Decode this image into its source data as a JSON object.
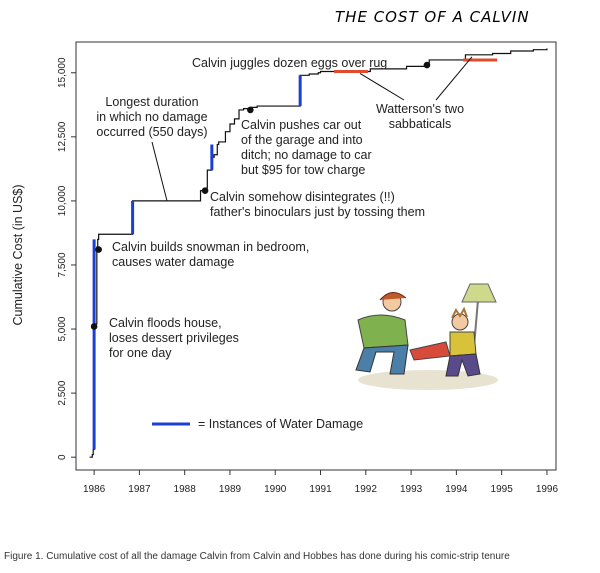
{
  "chart_data": {
    "type": "line",
    "title": "THE COST OF A CALVIN",
    "ylabel": "Cumulative Cost (in US$)",
    "xlabel": "",
    "xlim": [
      1985.6,
      1996.2
    ],
    "ylim": [
      -500,
      16200
    ],
    "x_ticks": [
      "1986",
      "1987",
      "1988",
      "1989",
      "1990",
      "1991",
      "1992",
      "1993",
      "1994",
      "1995",
      "1996"
    ],
    "y_ticks": [
      "0",
      "2,500",
      "5,000",
      "7,500",
      "10,000",
      "12,500",
      "15,000"
    ],
    "grid": false,
    "legend": {
      "label": "= Instances of Water Damage",
      "placement": "bottom-center",
      "color": "#1a3fd8"
    },
    "colors": {
      "line": "#111111",
      "water_damage": "#1a3fd8",
      "sabbatical": "#e24a2e",
      "dot": "#111111"
    },
    "series": [
      {
        "x": [
          1985.9,
          1985.96,
          1985.98,
          1986.0,
          1986.06,
          1986.08,
          1986.1,
          1986.2,
          1986.5,
          1986.85,
          1986.88,
          1987.4,
          1987.6,
          1988.1,
          1988.35,
          1988.45,
          1988.5,
          1988.6,
          1988.65,
          1988.72,
          1988.75,
          1988.9,
          1989.0,
          1989.1,
          1989.2,
          1989.3,
          1989.45,
          1989.6,
          1989.8,
          1990.3,
          1990.55,
          1990.62,
          1990.75,
          1990.95,
          1991.0,
          1991.25,
          1992.1,
          1992.9,
          1993.3,
          1993.4,
          1994.2,
          1994.8,
          1995.2,
          1995.7,
          1996.0
        ],
        "y": [
          0,
          100,
          300,
          5200,
          8200,
          8500,
          8700,
          8700,
          8700,
          10000,
          10000,
          10000,
          10000,
          10000,
          10400,
          10500,
          11200,
          11700,
          11800,
          12200,
          12300,
          12700,
          13000,
          13200,
          13550,
          13600,
          13650,
          13700,
          13700,
          13700,
          14900,
          14900,
          14950,
          15000,
          15050,
          15050,
          15150,
          15250,
          15300,
          15500,
          15700,
          15750,
          15850,
          15900,
          15950
        ]
      }
    ],
    "water_damage_segments": [
      [
        1986.0,
        1986.08
      ],
      [
        1986.85,
        1986.88
      ],
      [
        1988.6,
        1988.72
      ],
      [
        1990.55,
        1990.62
      ]
    ],
    "sabbaticals": [
      [
        1991.3,
        1992.05
      ],
      [
        1994.15,
        1994.9
      ]
    ],
    "events": [
      {
        "x": 1986.0,
        "y": 5100,
        "text": "Calvin floods house, loses dessert privileges for one day"
      },
      {
        "x": 1986.1,
        "y": 8100,
        "text": "Calvin builds snowman in bedroom, causes water damage"
      },
      {
        "x": 1988.45,
        "y": 10400,
        "text": "Calvin somehow disintegrates (!!) father's binoculars just by tossing them"
      },
      {
        "x": 1989.45,
        "y": 13550,
        "text": "Calvin pushes car out of the garage and into ditch; no damage to car but $95 for tow charge"
      },
      {
        "x": 1993.35,
        "y": 15300,
        "text": "Calvin juggles dozen eggs over rug"
      }
    ],
    "annotations": {
      "longest": [
        "Longest duration",
        "in which no damage",
        "occurred (550 days)"
      ],
      "sabbatical": [
        "Watterson's two",
        "sabbaticals"
      ],
      "floods": [
        "Calvin floods house,",
        "loses dessert privileges",
        "for one day"
      ],
      "snowman": [
        "Calvin builds snowman in bedroom,",
        "causes water damage"
      ],
      "binoculars": [
        "Calvin somehow disintegrates (!!)",
        "father's binoculars just by tossing them"
      ],
      "car": [
        "Calvin pushes car out",
        "of the garage and into",
        "ditch; no damage to car",
        "but $95 for tow charge"
      ],
      "eggs": [
        "Calvin juggles dozen eggs over rug"
      ]
    }
  },
  "caption": "Figure 1. Cumulative cost of all the damage Calvin from Calvin and Hobbes has done during his comic-strip tenure"
}
